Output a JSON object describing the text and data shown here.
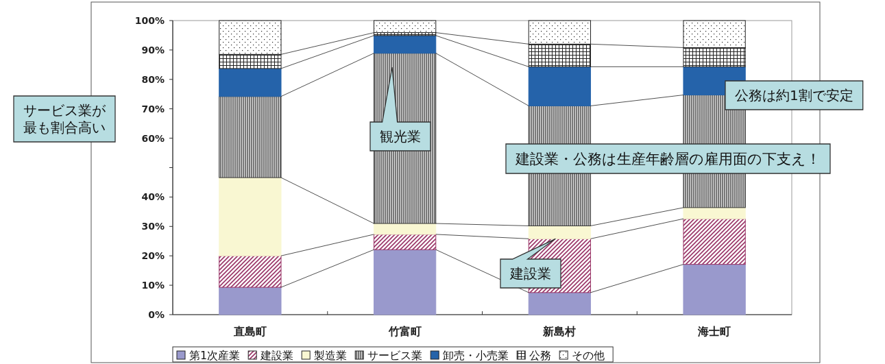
{
  "chart_data": {
    "type": "bar",
    "stacked": true,
    "categories": [
      "直島町",
      "竹富町",
      "新島村",
      "海士町"
    ],
    "series": [
      {
        "name": "第1次産業",
        "color": "#9999cc",
        "values": [
          9.3,
          22.1,
          7.5,
          17.1
        ]
      },
      {
        "name": "建設業",
        "color": "#993366",
        "values": [
          10.7,
          5.2,
          18.3,
          15.5
        ]
      },
      {
        "name": "製造業",
        "color": "#f9f7d2",
        "values": [
          26.6,
          3.7,
          4.4,
          3.8
        ]
      },
      {
        "name": "サービス業",
        "color": "#333333",
        "values": [
          27.6,
          57.9,
          40.8,
          38.3
        ]
      },
      {
        "name": "卸売・小売業",
        "color": "#2563aa",
        "values": [
          9.5,
          6.0,
          13.3,
          9.6
        ]
      },
      {
        "name": "公務",
        "color": "#222222",
        "values": [
          4.8,
          1.0,
          7.7,
          6.5
        ]
      },
      {
        "name": "その他",
        "color": "#222222",
        "values": [
          11.5,
          4.1,
          8.0,
          9.2
        ]
      }
    ],
    "ylim": [
      0,
      100
    ],
    "yticks": [
      {
        "value": 0,
        "label": "0%"
      },
      {
        "value": 10,
        "label": "10%"
      },
      {
        "value": 20,
        "label": "20%"
      },
      {
        "value": 30,
        "label": "30%"
      },
      {
        "value": 40,
        "label": "40%"
      },
      {
        "value": 50,
        "label": null
      },
      {
        "value": 60,
        "label": "60%"
      },
      {
        "value": 70,
        "label": "70%"
      },
      {
        "value": 80,
        "label": "80%"
      },
      {
        "value": 90,
        "label": "90%"
      },
      {
        "value": 100,
        "label": "100%"
      }
    ],
    "grid": false,
    "legend": "bottom",
    "annotations": [
      "サービス業が最も割合高い",
      "観光業",
      "公務は約1割で安定",
      "建設業・公務は生産年齢層の雇用面の下支え！",
      {
        "text": "建設業",
        "x": "新島村",
        "y": 25.8
      }
    ]
  }
}
